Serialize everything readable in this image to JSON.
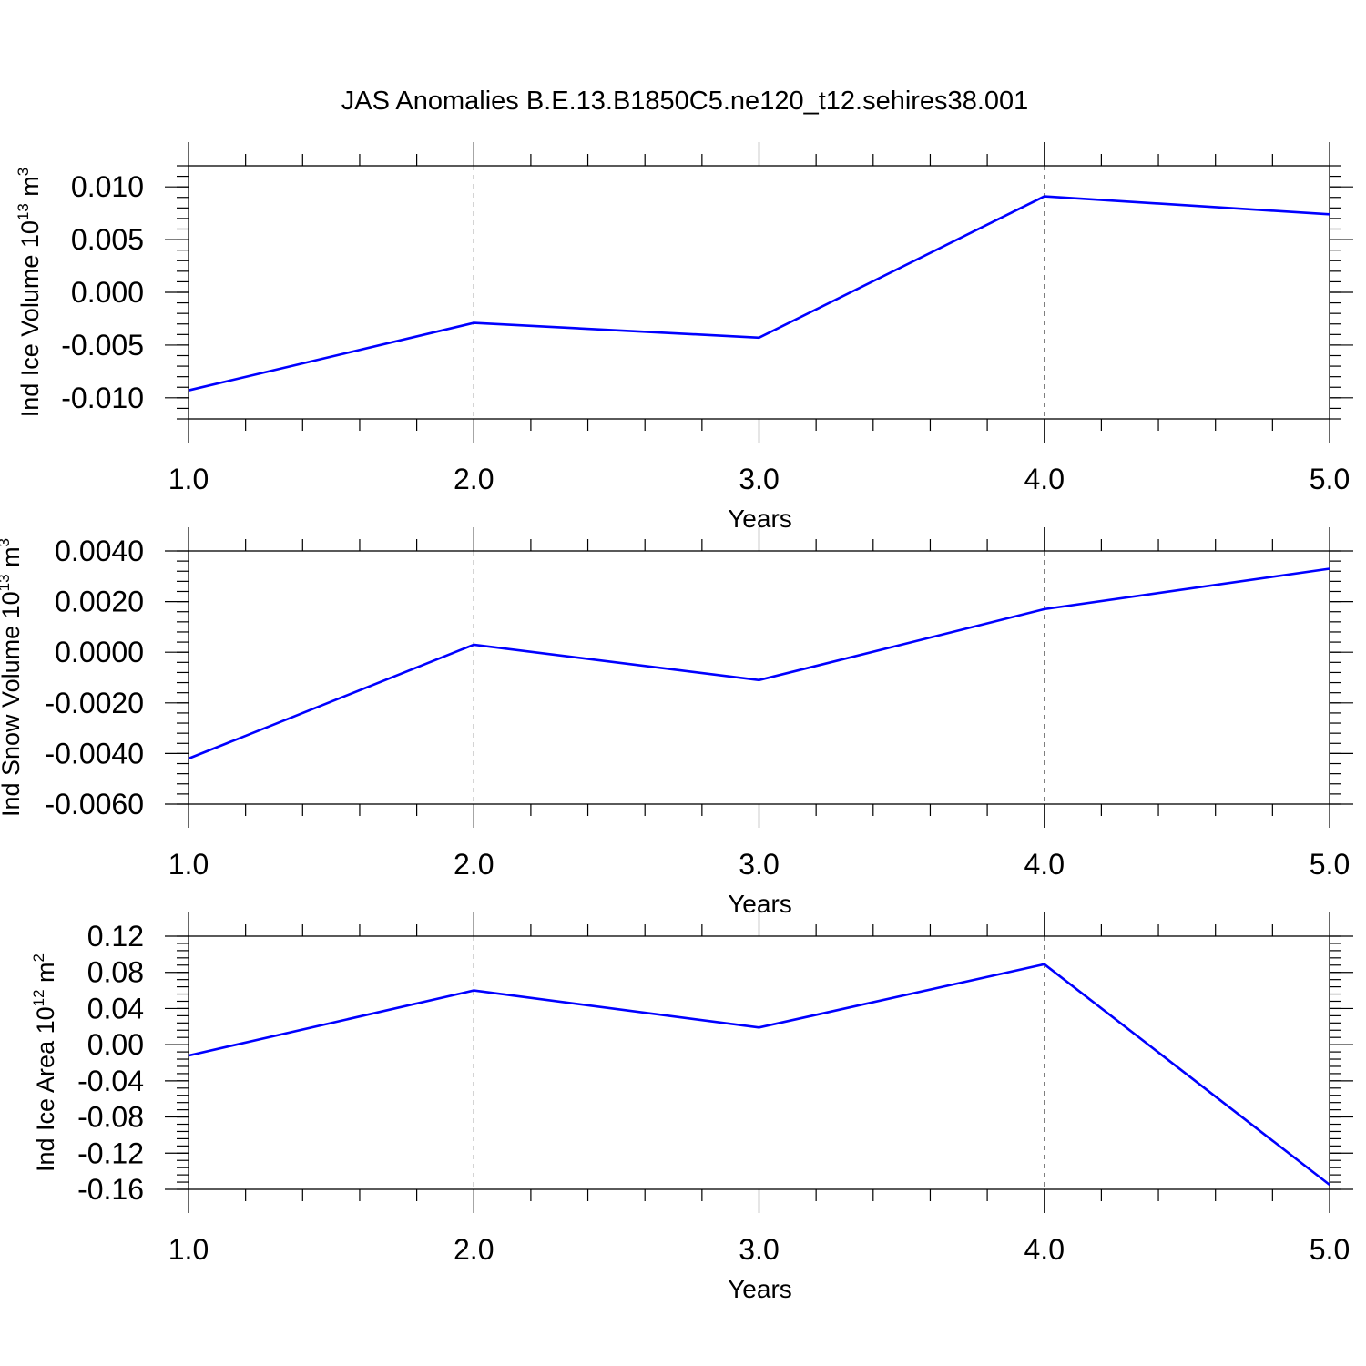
{
  "title": "JAS Anomalies B.E.13.B1850C5.ne120_t12.sehires38.001",
  "line_color": "#0000ff",
  "chart_data": [
    {
      "type": "line",
      "x": [
        1.0,
        2.0,
        3.0,
        4.0,
        5.0
      ],
      "series": [
        {
          "values": [
            -0.0093,
            -0.0029,
            -0.0043,
            0.0091,
            0.0074
          ]
        }
      ],
      "xlabel": "Years",
      "ylabel": {
        "text": "Ind Ice Volume 10",
        "sup": "13",
        "unit": " m",
        "unit_sup": "3"
      },
      "xlim": [
        1.0,
        5.0
      ],
      "ylim": [
        -0.012,
        0.012
      ],
      "xticks": [
        "1.0",
        "2.0",
        "3.0",
        "4.0",
        "5.0"
      ],
      "yticks": [
        {
          "v": 0.01,
          "label": "0.010"
        },
        {
          "v": 0.005,
          "label": "0.005"
        },
        {
          "v": 0.0,
          "label": "0.000"
        },
        {
          "v": -0.005,
          "label": "-0.005"
        },
        {
          "v": -0.01,
          "label": "-0.010"
        }
      ],
      "y_minor_step": 0.001,
      "grid": "vertical-dashed"
    },
    {
      "type": "line",
      "x": [
        1.0,
        2.0,
        3.0,
        4.0,
        5.0
      ],
      "series": [
        {
          "values": [
            -0.0042,
            0.0003,
            -0.0011,
            0.0017,
            0.0033
          ]
        }
      ],
      "xlabel": "Years",
      "ylabel": {
        "text": "Ind Snow Volume 10",
        "sup": "13",
        "unit": " m",
        "unit_sup": "3"
      },
      "xlim": [
        1.0,
        5.0
      ],
      "ylim": [
        -0.006,
        0.004
      ],
      "xticks": [
        "1.0",
        "2.0",
        "3.0",
        "4.0",
        "5.0"
      ],
      "yticks": [
        {
          "v": 0.004,
          "label": "0.0040"
        },
        {
          "v": 0.002,
          "label": "0.0020"
        },
        {
          "v": 0.0,
          "label": "0.0000"
        },
        {
          "v": -0.002,
          "label": "-0.0020"
        },
        {
          "v": -0.004,
          "label": "-0.0040"
        },
        {
          "v": -0.006,
          "label": "-0.0060"
        }
      ],
      "y_minor_step": 0.0004,
      "grid": "vertical-dashed"
    },
    {
      "type": "line",
      "x": [
        1.0,
        2.0,
        3.0,
        4.0,
        5.0
      ],
      "series": [
        {
          "values": [
            -0.012,
            0.06,
            0.019,
            0.089,
            -0.155
          ]
        }
      ],
      "xlabel": "Years",
      "ylabel": {
        "text": "Ind Ice Area 10",
        "sup": "12",
        "unit": " m",
        "unit_sup": "2"
      },
      "xlim": [
        1.0,
        5.0
      ],
      "ylim": [
        -0.16,
        0.12
      ],
      "xticks": [
        "1.0",
        "2.0",
        "3.0",
        "4.0",
        "5.0"
      ],
      "yticks": [
        {
          "v": 0.12,
          "label": "0.12"
        },
        {
          "v": 0.08,
          "label": "0.08"
        },
        {
          "v": 0.04,
          "label": "0.04"
        },
        {
          "v": 0.0,
          "label": "0.00"
        },
        {
          "v": -0.04,
          "label": "-0.04"
        },
        {
          "v": -0.08,
          "label": "-0.08"
        },
        {
          "v": -0.12,
          "label": "-0.12"
        },
        {
          "v": -0.16,
          "label": "-0.16"
        }
      ],
      "y_minor_step": 0.008,
      "grid": "vertical-dashed"
    }
  ]
}
